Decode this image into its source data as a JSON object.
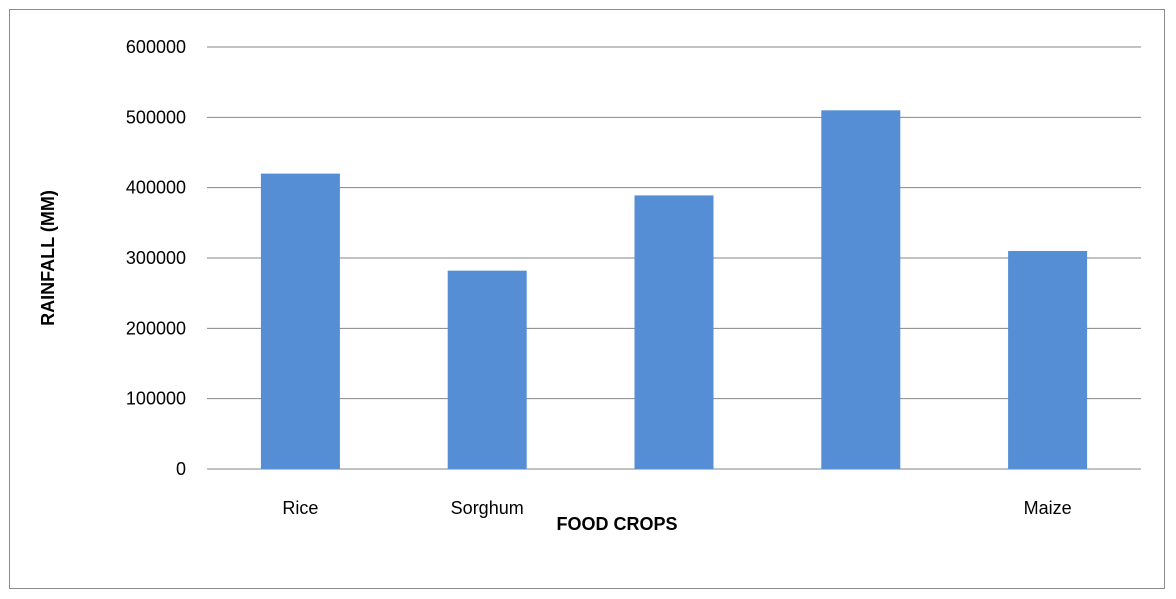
{
  "chart_data": {
    "type": "bar",
    "categories": [
      "Rice",
      "Sorghum",
      "",
      "",
      "Maize"
    ],
    "values": [
      420000,
      282000,
      389000,
      510000,
      310000
    ],
    "title": "",
    "xlabel": "FOOD CROPS",
    "ylabel": "RAINFALL (MM)",
    "ylim": [
      0,
      600000
    ],
    "yticks": [
      0,
      100000,
      200000,
      300000,
      400000,
      500000,
      600000
    ],
    "ytick_labels": [
      "0",
      "100000",
      "200000",
      "300000",
      "400000",
      "500000",
      "600000"
    ],
    "grid": true,
    "legend": "none",
    "bar_color": "#558ED5",
    "grid_color": "#868686"
  }
}
